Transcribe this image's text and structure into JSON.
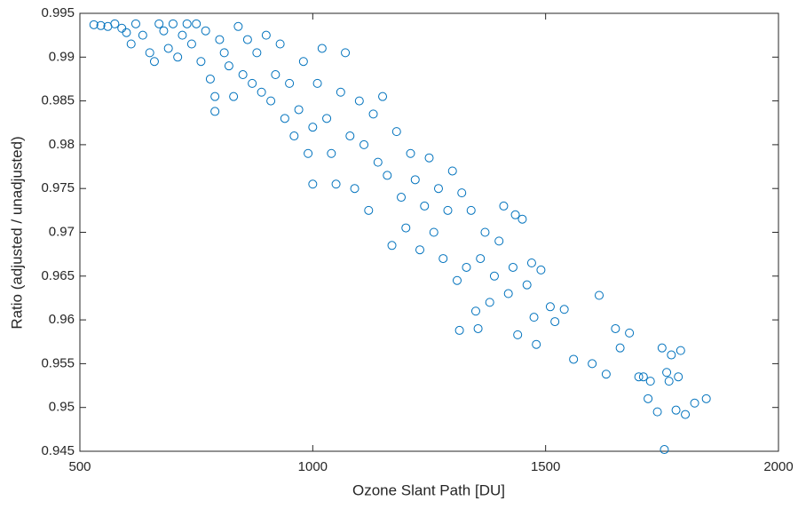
{
  "chart_data": {
    "type": "scatter",
    "xlabel": "Ozone Slant Path [DU]",
    "ylabel": "Ratio (adjusted / unadjusted)",
    "color": "#0072bd",
    "xlim": [
      500,
      2000
    ],
    "xticks": [
      500,
      1000,
      1500,
      2000
    ],
    "ylim": [
      0.945,
      0.995
    ],
    "yticks": [
      0.945,
      0.95,
      0.955,
      0.96,
      0.965,
      0.97,
      0.975,
      0.98,
      0.985,
      0.99,
      0.995
    ],
    "x": [
      530,
      545,
      560,
      575,
      590,
      600,
      610,
      620,
      635,
      650,
      660,
      670,
      680,
      690,
      700,
      710,
      720,
      730,
      740,
      750,
      760,
      770,
      780,
      790,
      790,
      800,
      810,
      820,
      830,
      840,
      850,
      860,
      870,
      880,
      890,
      900,
      910,
      920,
      930,
      940,
      950,
      960,
      970,
      980,
      990,
      1000,
      1000,
      1010,
      1020,
      1030,
      1040,
      1050,
      1060,
      1070,
      1080,
      1090,
      1100,
      1110,
      1120,
      1130,
      1140,
      1150,
      1160,
      1170,
      1180,
      1190,
      1200,
      1210,
      1220,
      1230,
      1240,
      1250,
      1260,
      1270,
      1280,
      1290,
      1300,
      1310,
      1315,
      1320,
      1330,
      1340,
      1350,
      1355,
      1360,
      1370,
      1380,
      1390,
      1400,
      1410,
      1420,
      1430,
      1435,
      1440,
      1450,
      1460,
      1470,
      1475,
      1480,
      1490,
      1510,
      1520,
      1540,
      1560,
      1600,
      1615,
      1630,
      1650,
      1660,
      1680,
      1700,
      1710,
      1720,
      1725,
      1740,
      1750,
      1755,
      1760,
      1765,
      1770,
      1780,
      1785,
      1790,
      1800,
      1820,
      1845
    ],
    "values": [
      0.9937,
      0.9936,
      0.9935,
      0.9938,
      0.9933,
      0.9928,
      0.9915,
      0.9938,
      0.9925,
      0.9905,
      0.9895,
      0.9938,
      0.993,
      0.991,
      0.9938,
      0.99,
      0.9925,
      0.9938,
      0.9915,
      0.9938,
      0.9895,
      0.993,
      0.9875,
      0.9838,
      0.9855,
      0.992,
      0.9905,
      0.989,
      0.9855,
      0.9935,
      0.988,
      0.992,
      0.987,
      0.9905,
      0.986,
      0.9925,
      0.985,
      0.988,
      0.9915,
      0.983,
      0.987,
      0.981,
      0.984,
      0.9895,
      0.979,
      0.982,
      0.9755,
      0.987,
      0.991,
      0.983,
      0.979,
      0.9755,
      0.986,
      0.9905,
      0.981,
      0.975,
      0.985,
      0.98,
      0.9725,
      0.9835,
      0.978,
      0.9855,
      0.9765,
      0.9685,
      0.9815,
      0.974,
      0.9705,
      0.979,
      0.976,
      0.968,
      0.973,
      0.9785,
      0.97,
      0.975,
      0.967,
      0.9725,
      0.977,
      0.9645,
      0.9588,
      0.9745,
      0.966,
      0.9725,
      0.961,
      0.959,
      0.967,
      0.97,
      0.962,
      0.965,
      0.969,
      0.973,
      0.963,
      0.966,
      0.972,
      0.9583,
      0.9715,
      0.964,
      0.9665,
      0.9603,
      0.9572,
      0.9657,
      0.9615,
      0.9598,
      0.9612,
      0.9555,
      0.955,
      0.9628,
      0.9538,
      0.959,
      0.9568,
      0.9585,
      0.9535,
      0.9535,
      0.951,
      0.953,
      0.9495,
      0.9568,
      0.9452,
      0.954,
      0.953,
      0.956,
      0.9497,
      0.9535,
      0.9565,
      0.9492,
      0.9505,
      0.951
    ]
  }
}
